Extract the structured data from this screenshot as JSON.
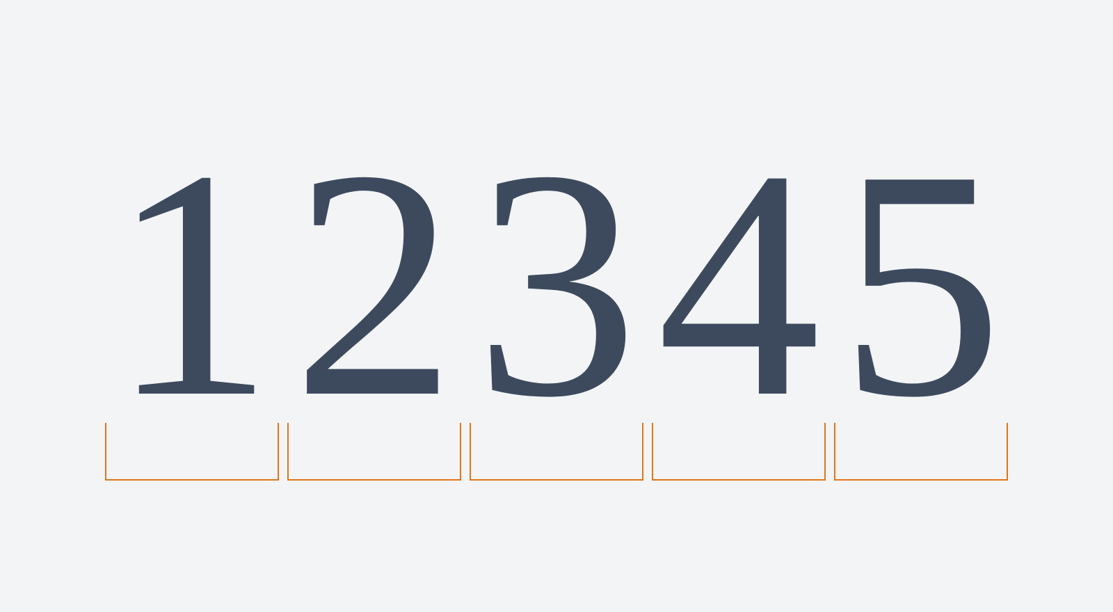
{
  "digits": [
    "1",
    "2",
    "3",
    "4",
    "5"
  ],
  "colors": {
    "background": "#f3f4f6",
    "digit": "#3d4a5e",
    "bracket": "#e07516"
  }
}
